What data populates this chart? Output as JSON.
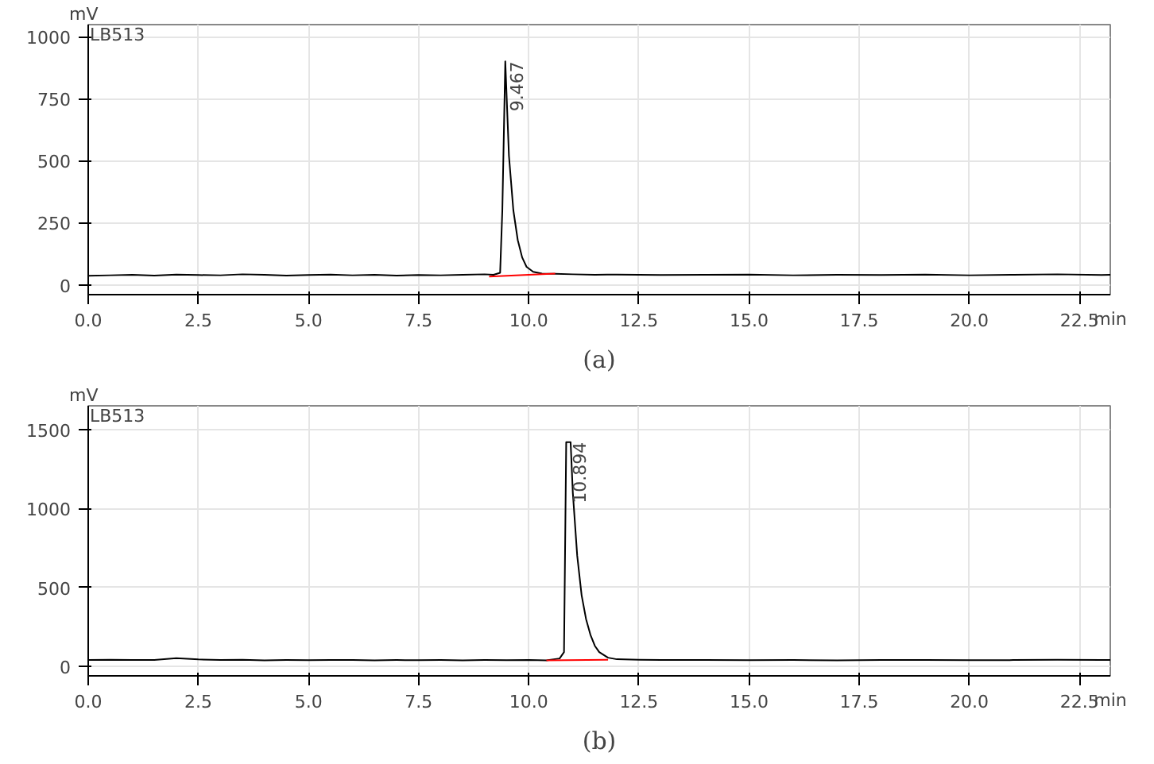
{
  "chart_data": [
    {
      "type": "line",
      "title": "(a)",
      "xlabel": "min",
      "ylabel": "mV",
      "annotations": [
        "LB513",
        {
          "text": "9.467",
          "x": 9.467,
          "y": 900
        }
      ],
      "grid": true,
      "xlim": [
        0,
        23.2
      ],
      "ylim": [
        -40,
        1048
      ],
      "xticks": [
        {
          "value": 0,
          "label": "0.0"
        },
        {
          "value": 2.5,
          "label": "2.5"
        },
        {
          "value": 5,
          "label": "5.0"
        },
        {
          "value": 7.5,
          "label": "7.5"
        },
        {
          "value": 10,
          "label": "10.0"
        },
        {
          "value": 12.5,
          "label": "12.5"
        },
        {
          "value": 15,
          "label": "15.0"
        },
        {
          "value": 17.5,
          "label": "17.5"
        },
        {
          "value": 20,
          "label": "20.0"
        },
        {
          "value": 22.5,
          "label": "22.5"
        }
      ],
      "yticks": [
        0,
        250,
        500,
        750,
        1000
      ],
      "series": [
        {
          "color": "#000000",
          "x": [
            0,
            0.5,
            1,
            1.5,
            2,
            2.5,
            3,
            3.5,
            4,
            4.5,
            5,
            5.5,
            6,
            6.5,
            7,
            7.5,
            8,
            8.5,
            9,
            9.2,
            9.35,
            9.4,
            9.467,
            9.55,
            9.65,
            9.75,
            9.85,
            9.95,
            10.1,
            10.3,
            10.6,
            11,
            11.5,
            12,
            13,
            14,
            15,
            16,
            17,
            18,
            19,
            20,
            21,
            22,
            23,
            23.2
          ],
          "values": [
            36,
            38,
            40,
            37,
            41,
            39,
            38,
            42,
            40,
            37,
            39,
            41,
            38,
            40,
            37,
            39,
            38,
            40,
            42,
            40,
            48,
            300,
            900,
            520,
            300,
            180,
            110,
            72,
            52,
            45,
            44,
            42,
            40,
            41,
            39,
            40,
            41,
            38,
            40,
            39,
            41,
            38,
            40,
            42,
            39,
            40
          ]
        },
        {
          "color": "#ff0000",
          "x": [
            9.1,
            10.6
          ],
          "values": [
            33,
            45
          ]
        }
      ]
    },
    {
      "type": "line",
      "title": "(b)",
      "xlabel": "min",
      "ylabel": "mV",
      "annotations": [
        "LB513",
        {
          "text": "10.894",
          "x": 10.894,
          "y": 1420
        }
      ],
      "grid": true,
      "xlim": [
        0,
        23.2
      ],
      "ylim": [
        -60,
        1650
      ],
      "xticks": [
        {
          "value": 0,
          "label": "0.0"
        },
        {
          "value": 2.5,
          "label": "2.5"
        },
        {
          "value": 5,
          "label": "5.0"
        },
        {
          "value": 7.5,
          "label": "7.5"
        },
        {
          "value": 10,
          "label": "10.0"
        },
        {
          "value": 12.5,
          "label": "12.5"
        },
        {
          "value": 15,
          "label": "15.0"
        },
        {
          "value": 17.5,
          "label": "17.5"
        },
        {
          "value": 20,
          "label": "20.0"
        },
        {
          "value": 22.5,
          "label": "22.5"
        }
      ],
      "yticks": [
        0,
        500,
        1000,
        1500
      ],
      "series": [
        {
          "color": "#000000",
          "x": [
            0,
            0.5,
            1,
            1.5,
            2,
            2.5,
            3,
            3.5,
            4,
            4.5,
            5,
            5.5,
            6,
            6.5,
            7,
            7.5,
            8,
            8.5,
            9,
            9.5,
            10,
            10.4,
            10.7,
            10.8,
            10.85,
            10.95,
            11,
            11.1,
            11.2,
            11.3,
            11.4,
            11.5,
            11.6,
            11.8,
            12,
            12.5,
            13,
            14,
            15,
            16,
            17,
            18,
            19,
            20,
            21,
            22,
            23,
            23.2
          ],
          "values": [
            40,
            42,
            40,
            41,
            52,
            44,
            40,
            42,
            38,
            40,
            39,
            41,
            40,
            38,
            40,
            39,
            40,
            38,
            40,
            39,
            40,
            38,
            50,
            90,
            1420,
            1420,
            1100,
            700,
            450,
            300,
            200,
            130,
            90,
            55,
            45,
            42,
            40,
            41,
            39,
            40,
            38,
            40,
            41,
            39,
            40,
            42,
            40,
            41
          ]
        },
        {
          "color": "#ff0000",
          "x": [
            10.4,
            11.8
          ],
          "values": [
            38,
            42
          ]
        }
      ]
    }
  ]
}
